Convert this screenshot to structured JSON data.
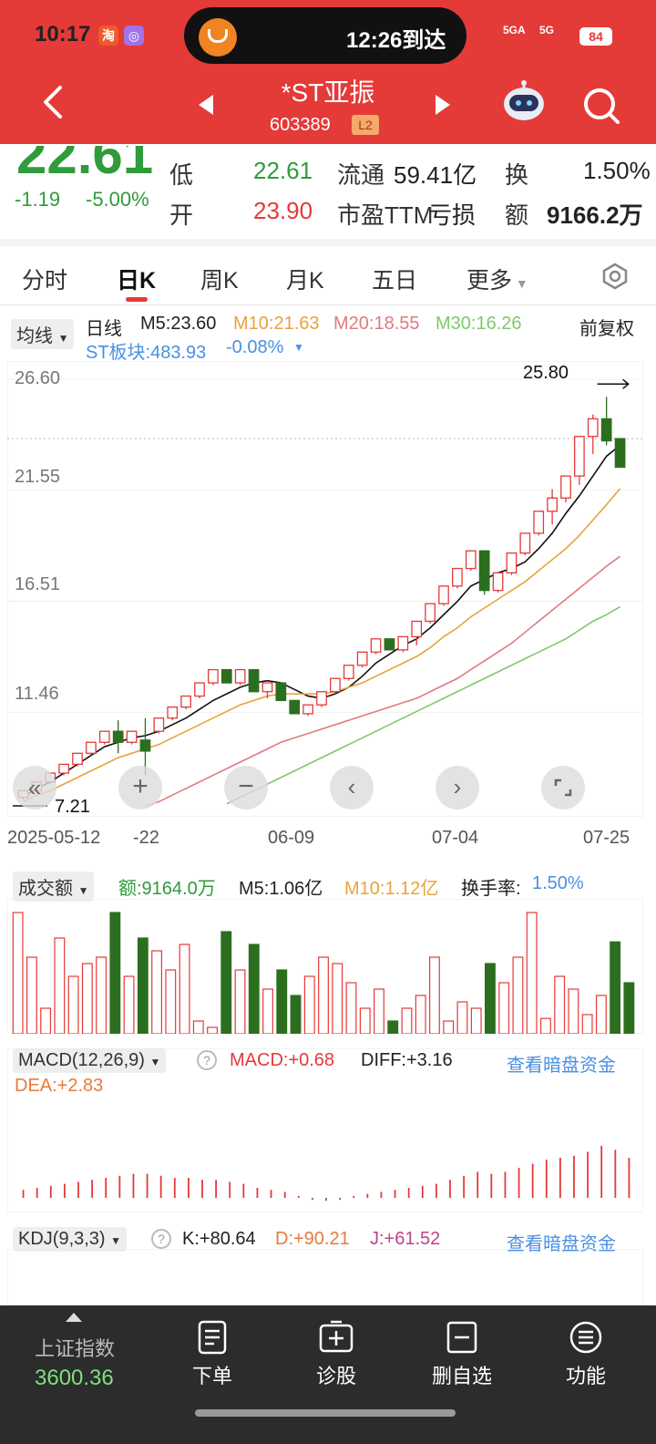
{
  "status": {
    "time": "10:17",
    "island_text": "12:26到达",
    "battery": "84",
    "signal1": "5GA",
    "signal2": "5G",
    "badge_tao": "淘"
  },
  "header": {
    "title": "*ST亚振",
    "code": "603389",
    "level": "L2"
  },
  "quote": {
    "price": "22.61",
    "change": "-1.19",
    "change_pct": "-5.00%",
    "low_label": "低",
    "low": "22.61",
    "open_label": "开",
    "open": "23.90",
    "float_label": "流通",
    "float": "59.41亿",
    "pe_label": "市盈TTM",
    "pe": "亏损",
    "turnover_label": "换",
    "turnover": "1.50%",
    "amount_label": "额",
    "amount": "9166.2万"
  },
  "tabs": [
    "分时",
    "日K",
    "周K",
    "月K",
    "五日",
    "更多"
  ],
  "kline_legend": {
    "indicator_select": "均线",
    "period": "日线",
    "m5": "M5:23.60",
    "m10": "M10:21.63",
    "m20": "M20:18.55",
    "m30": "M30:16.26",
    "adjust": "前复权",
    "sector": "ST板块:483.93",
    "sector_change": "-0.08%"
  },
  "kline_axis": {
    "y_labels": [
      "26.60",
      "21.55",
      "16.51",
      "11.46"
    ],
    "high_marker": "25.80",
    "low_marker": "7.21",
    "dates": [
      "2025-05-12",
      "-22",
      "06-09",
      "07-04",
      "07-25"
    ]
  },
  "volume": {
    "select": "成交额",
    "amount": "额:9164.0万",
    "m5": "M5:1.06亿",
    "m10": "M10:1.12亿",
    "turnover_label": "换手率:",
    "turnover": "1.50%"
  },
  "macd": {
    "select": "MACD(12,26,9)",
    "macd": "MACD:+0.68",
    "diff": "DIFF:+3.16",
    "dea": "DEA:+2.83",
    "link": "查看暗盘资金"
  },
  "kdj": {
    "select": "KDJ(9,3,3)",
    "k": "K:+80.64",
    "d": "D:+90.21",
    "j": "J:+61.52",
    "link": "查看暗盘资金"
  },
  "bottom": {
    "index_name": "上证指数",
    "index_value": "3600.36",
    "order": "下单",
    "diagnose": "诊股",
    "remove": "删自选",
    "function": "功能"
  },
  "colors": {
    "red": "#e43a38",
    "green": "#2f9b3a",
    "candle_green": "#2c6e1f",
    "orange": "#e8a33a",
    "pink": "#e07a80",
    "lightgreen": "#7fc96b",
    "blue": "#4a90e2"
  },
  "chart_data": {
    "type": "candlestick",
    "title": "*ST亚振 日K",
    "x_ticks": [
      "2025-05-12",
      "-22",
      "06-09",
      "07-04",
      "07-25"
    ],
    "ylim": [
      7.21,
      26.6
    ],
    "y_ticks": [
      26.6,
      21.55,
      16.51,
      11.46
    ],
    "series": [
      {
        "name": "candles",
        "ohlc": [
          [
            7.6,
            7.9,
            7.5,
            7.9
          ],
          [
            7.9,
            8.3,
            7.8,
            8.3
          ],
          [
            8.3,
            8.7,
            8.2,
            8.7
          ],
          [
            8.7,
            9.1,
            8.6,
            9.1
          ],
          [
            9.1,
            9.6,
            9.0,
            9.6
          ],
          [
            9.6,
            10.1,
            9.5,
            10.1
          ],
          [
            10.1,
            10.6,
            10.0,
            10.6
          ],
          [
            10.6,
            11.1,
            9.6,
            10.1
          ],
          [
            10.1,
            10.6,
            10.0,
            10.6
          ],
          [
            10.2,
            11.2,
            8.6,
            9.7
          ],
          [
            10.6,
            11.2,
            10.5,
            11.2
          ],
          [
            11.2,
            11.7,
            11.1,
            11.7
          ],
          [
            11.7,
            12.2,
            11.6,
            12.2
          ],
          [
            12.2,
            12.8,
            12.1,
            12.8
          ],
          [
            12.8,
            13.4,
            12.7,
            13.4
          ],
          [
            13.4,
            13.4,
            12.8,
            12.8
          ],
          [
            12.8,
            13.4,
            12.7,
            13.4
          ],
          [
            13.4,
            13.4,
            12.4,
            12.4
          ],
          [
            12.4,
            12.8,
            12.1,
            12.8
          ],
          [
            12.8,
            12.8,
            12.0,
            12.0
          ],
          [
            12.0,
            12.0,
            11.4,
            11.4
          ],
          [
            11.4,
            11.8,
            11.3,
            11.8
          ],
          [
            11.8,
            12.4,
            11.7,
            12.4
          ],
          [
            12.4,
            13.0,
            12.3,
            13.0
          ],
          [
            13.0,
            13.6,
            12.9,
            13.6
          ],
          [
            13.6,
            14.2,
            13.5,
            14.2
          ],
          [
            14.2,
            14.8,
            14.1,
            14.8
          ],
          [
            14.8,
            14.8,
            14.3,
            14.3
          ],
          [
            14.3,
            14.9,
            14.2,
            14.9
          ],
          [
            14.9,
            15.6,
            14.5,
            15.6
          ],
          [
            15.6,
            16.4,
            15.5,
            16.4
          ],
          [
            16.4,
            17.2,
            16.3,
            17.2
          ],
          [
            17.2,
            18.0,
            17.1,
            18.0
          ],
          [
            18.0,
            18.8,
            17.9,
            18.8
          ],
          [
            18.8,
            18.8,
            16.8,
            17.0
          ],
          [
            17.0,
            17.8,
            16.9,
            17.8
          ],
          [
            17.8,
            18.7,
            17.7,
            18.7
          ],
          [
            18.7,
            19.6,
            18.6,
            19.6
          ],
          [
            19.6,
            20.6,
            19.5,
            20.6
          ],
          [
            20.6,
            21.6,
            20.0,
            21.2
          ],
          [
            21.2,
            22.2,
            21.0,
            22.2
          ],
          [
            22.2,
            24.0,
            21.8,
            24.0
          ],
          [
            24.0,
            25.0,
            23.2,
            24.8
          ],
          [
            24.8,
            25.8,
            23.6,
            23.8
          ],
          [
            23.9,
            23.9,
            22.6,
            22.6
          ]
        ]
      },
      {
        "name": "M5",
        "values": [
          7.6,
          8.0,
          8.3,
          8.7,
          9.1,
          9.5,
          9.9,
          10.1,
          10.3,
          10.4,
          10.6,
          10.9,
          11.2,
          11.6,
          12.0,
          12.3,
          12.6,
          12.8,
          12.9,
          12.8,
          12.5,
          12.2,
          12.1,
          12.3,
          12.6,
          13.1,
          13.7,
          14.1,
          14.5,
          14.8,
          15.3,
          15.9,
          16.5,
          17.2,
          17.5,
          17.8,
          18.0,
          18.3,
          18.9,
          19.6,
          20.5,
          21.3,
          22.2,
          23.1,
          23.6
        ]
      },
      {
        "name": "M10",
        "values": [
          7.4,
          7.7,
          7.9,
          8.2,
          8.5,
          8.8,
          9.1,
          9.4,
          9.6,
          9.8,
          10.0,
          10.3,
          10.6,
          10.9,
          11.2,
          11.5,
          11.8,
          12.0,
          12.2,
          12.3,
          12.3,
          12.3,
          12.3,
          12.4,
          12.6,
          12.8,
          13.1,
          13.4,
          13.7,
          14.0,
          14.4,
          14.9,
          15.3,
          15.8,
          16.2,
          16.6,
          17.0,
          17.4,
          17.9,
          18.4,
          18.9,
          19.5,
          20.2,
          20.9,
          21.63
        ]
      },
      {
        "name": "M20",
        "values": [
          null,
          null,
          null,
          null,
          null,
          null,
          null,
          null,
          null,
          7.2,
          7.4,
          7.7,
          8.0,
          8.3,
          8.6,
          8.9,
          9.2,
          9.5,
          9.8,
          10.1,
          10.3,
          10.5,
          10.7,
          10.9,
          11.1,
          11.3,
          11.5,
          11.7,
          11.9,
          12.1,
          12.4,
          12.7,
          13.0,
          13.4,
          13.8,
          14.2,
          14.6,
          15.1,
          15.6,
          16.1,
          16.6,
          17.1,
          17.6,
          18.1,
          18.55
        ]
      },
      {
        "name": "M30",
        "values": [
          null,
          null,
          null,
          null,
          null,
          null,
          null,
          null,
          null,
          null,
          null,
          null,
          null,
          null,
          null,
          7.3,
          7.6,
          7.9,
          8.2,
          8.5,
          8.8,
          9.1,
          9.4,
          9.7,
          10.0,
          10.3,
          10.6,
          10.9,
          11.2,
          11.5,
          11.8,
          12.1,
          12.4,
          12.7,
          13.0,
          13.3,
          13.6,
          13.9,
          14.2,
          14.5,
          14.8,
          15.2,
          15.6,
          15.9,
          16.26
        ]
      }
    ]
  }
}
